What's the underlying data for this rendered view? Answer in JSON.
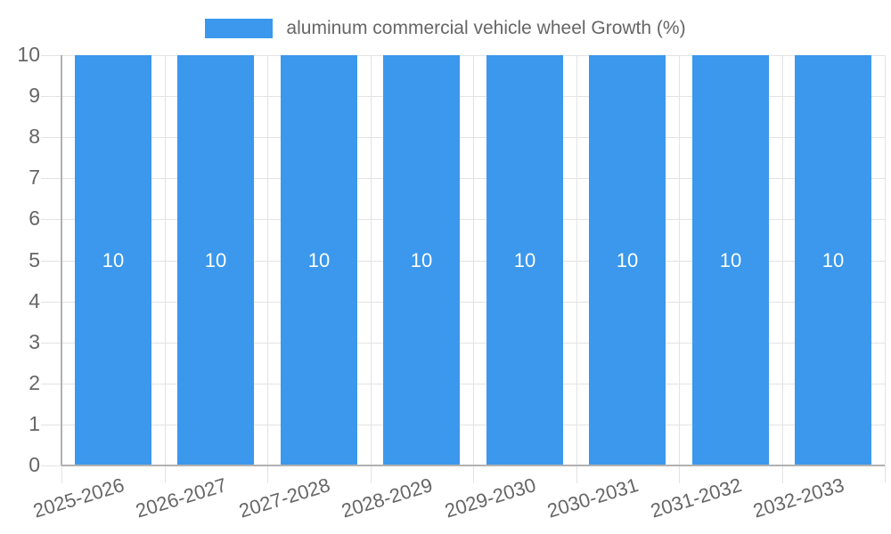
{
  "chart_data": {
    "type": "bar",
    "title": "",
    "legend": {
      "position": "top",
      "label": "aluminum commercial vehicle wheel Growth (%)"
    },
    "categories": [
      "2025-2026",
      "2026-2027",
      "2027-2028",
      "2028-2029",
      "2029-2030",
      "2030-2031",
      "2031-2032",
      "2032-2033"
    ],
    "values": [
      10,
      10,
      10,
      10,
      10,
      10,
      10,
      10
    ],
    "data_labels": [
      "10",
      "10",
      "10",
      "10",
      "10",
      "10",
      "10",
      "10"
    ],
    "xlabel": "",
    "ylabel": "",
    "ylim": [
      0,
      10
    ],
    "yticks": [
      0,
      1,
      2,
      3,
      4,
      5,
      6,
      7,
      8,
      9,
      10
    ],
    "grid": true,
    "x_label_rotation_deg": -17,
    "colors": {
      "bar": "#3B98EC",
      "data_label": "#FFFFFF",
      "axis_text": "#666666",
      "grid_line": "#E3E3E3",
      "axis_line": "#B1B1B1",
      "background": "#FFFFFF"
    }
  }
}
